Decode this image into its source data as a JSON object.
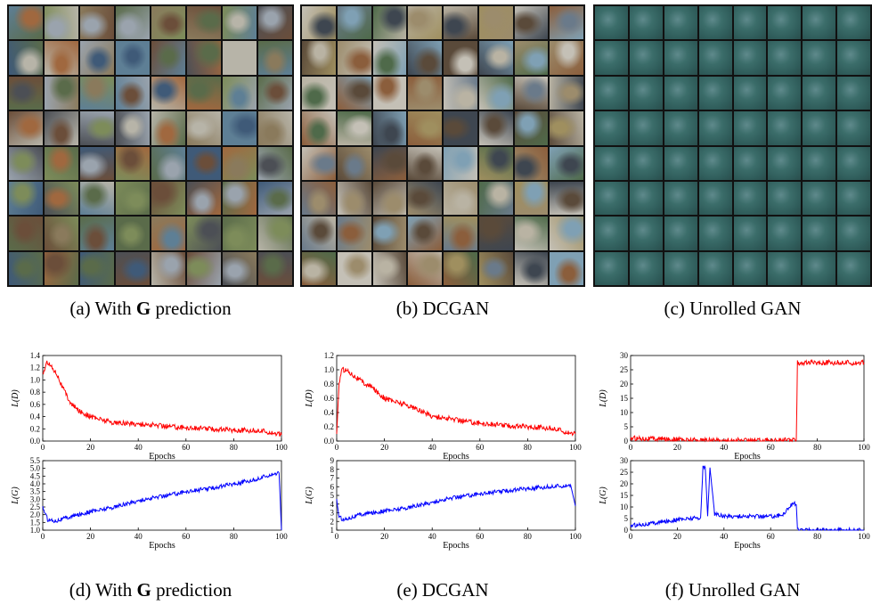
{
  "captions": {
    "a": {
      "prefix": "(a) With ",
      "bold": "G",
      "suffix": " prediction"
    },
    "b": "(b) DCGAN",
    "c": "(c) Unrolled GAN",
    "d": {
      "prefix": "(d) With ",
      "bold": "G",
      "suffix": " prediction"
    },
    "e": "(e) DCGAN",
    "f": "(f) Unrolled GAN"
  },
  "sample_grids": {
    "rows": 8,
    "cols": 8,
    "a": {
      "palette": [
        "#5a6b4a",
        "#8a7a5c",
        "#3f5a78",
        "#9aa3ad",
        "#6b4e3a",
        "#7d8c5a",
        "#b7b4a8",
        "#4c4f55",
        "#a0683f",
        "#5e7f95"
      ]
    },
    "b": {
      "palette": [
        "#6a7a8a",
        "#9c8c6c",
        "#4f6a4a",
        "#b9b3a3",
        "#5a4a3a",
        "#7fa0b4",
        "#8b5e3c",
        "#c4c0b6",
        "#3e4650",
        "#9f8f5f"
      ]
    },
    "c": {
      "palette": [
        "#2f5c5a",
        "#3b6d6a",
        "#4f7f74",
        "#5f8a8c",
        "#2a4d4c",
        "#6d8f84"
      ]
    }
  },
  "chart_data": [
    {
      "type": "line",
      "id": "d-top",
      "xlabel": "Epochs",
      "ylabel": "L(D)",
      "xlim": [
        0,
        100
      ],
      "ylim": [
        0,
        1.4
      ],
      "xticks": [
        "0",
        "20",
        "40",
        "60",
        "80",
        "100"
      ],
      "yticks": [
        "0.0",
        "0.2",
        "0.4",
        "0.6",
        "0.8",
        "1.0",
        "1.2",
        "1.4"
      ],
      "color": "#ff0000",
      "series": [
        {
          "x": [
            0,
            2,
            4,
            6,
            8,
            10,
            12,
            15,
            20,
            25,
            30,
            40,
            50,
            60,
            70,
            80,
            90,
            95,
            100
          ],
          "y": [
            1.1,
            1.3,
            1.2,
            1.1,
            0.9,
            0.75,
            0.6,
            0.5,
            0.4,
            0.35,
            0.3,
            0.28,
            0.25,
            0.22,
            0.2,
            0.18,
            0.17,
            0.15,
            0.1
          ]
        }
      ]
    },
    {
      "type": "line",
      "id": "d-bot",
      "xlabel": "Epochs",
      "ylabel": "L(G)",
      "xlim": [
        0,
        100
      ],
      "ylim": [
        1.0,
        5.5
      ],
      "xticks": [
        "0",
        "20",
        "40",
        "60",
        "80",
        "100"
      ],
      "yticks": [
        "1.0",
        "1.5",
        "2.0",
        "2.5",
        "3.0",
        "3.5",
        "4.0",
        "4.5",
        "5.0",
        "5.5"
      ],
      "color": "#0000ff",
      "series": [
        {
          "x": [
            0,
            2,
            5,
            10,
            20,
            30,
            40,
            50,
            60,
            70,
            80,
            90,
            95,
            99,
            100
          ],
          "y": [
            2.5,
            1.7,
            1.6,
            1.8,
            2.2,
            2.5,
            2.9,
            3.2,
            3.5,
            3.7,
            4.0,
            4.3,
            4.6,
            4.7,
            1.0
          ]
        }
      ]
    },
    {
      "type": "line",
      "id": "e-top",
      "xlabel": "Epochs",
      "ylabel": "L(D)",
      "xlim": [
        0,
        100
      ],
      "ylim": [
        0,
        1.2
      ],
      "xticks": [
        "0",
        "20",
        "40",
        "60",
        "80",
        "100"
      ],
      "yticks": [
        "0.0",
        "0.2",
        "0.4",
        "0.6",
        "0.8",
        "1.0",
        "1.2"
      ],
      "color": "#ff0000",
      "series": [
        {
          "x": [
            0,
            1,
            2,
            4,
            6,
            8,
            10,
            12,
            15,
            20,
            30,
            40,
            50,
            60,
            70,
            80,
            90,
            100
          ],
          "y": [
            0.1,
            0.8,
            1.0,
            1.0,
            0.95,
            0.9,
            0.85,
            0.8,
            0.75,
            0.6,
            0.5,
            0.35,
            0.3,
            0.25,
            0.22,
            0.2,
            0.18,
            0.1
          ]
        }
      ]
    },
    {
      "type": "line",
      "id": "e-bot",
      "xlabel": "Epochs",
      "ylabel": "L(G)",
      "xlim": [
        0,
        100
      ],
      "ylim": [
        1,
        9
      ],
      "xticks": [
        "0",
        "20",
        "40",
        "60",
        "80",
        "100"
      ],
      "yticks": [
        "1",
        "2",
        "3",
        "4",
        "5",
        "6",
        "7",
        "8",
        "9"
      ],
      "color": "#0000ff",
      "series": [
        {
          "x": [
            0,
            1,
            3,
            5,
            10,
            20,
            30,
            40,
            50,
            60,
            70,
            80,
            90,
            98,
            100
          ],
          "y": [
            4.5,
            2.5,
            2.2,
            2.4,
            2.8,
            3.2,
            3.6,
            4.2,
            4.8,
            5.2,
            5.5,
            5.8,
            6.0,
            6.2,
            3.8
          ]
        }
      ]
    },
    {
      "type": "line",
      "id": "f-top",
      "xlabel": "Epochs",
      "ylabel": "L(D)",
      "xlim": [
        0,
        100
      ],
      "ylim": [
        0,
        30
      ],
      "xticks": [
        "0",
        "20",
        "40",
        "60",
        "80",
        "100"
      ],
      "yticks": [
        "0",
        "5",
        "10",
        "15",
        "20",
        "25",
        "30"
      ],
      "color": "#ff0000",
      "series": [
        {
          "x": [
            0,
            5,
            10,
            20,
            30,
            40,
            50,
            60,
            70,
            71,
            71.5,
            80,
            90,
            100
          ],
          "y": [
            1.0,
            1.0,
            0.8,
            0.5,
            0.3,
            0.2,
            0.2,
            0.3,
            0.3,
            0.3,
            27.5,
            27.5,
            27.5,
            27.5
          ]
        }
      ]
    },
    {
      "type": "line",
      "id": "f-bot",
      "xlabel": "Epochs",
      "ylabel": "L(G)",
      "xlim": [
        0,
        100
      ],
      "ylim": [
        0,
        30
      ],
      "xticks": [
        "0",
        "20",
        "40",
        "60",
        "80",
        "100"
      ],
      "yticks": [
        "0",
        "5",
        "10",
        "15",
        "20",
        "25",
        "30"
      ],
      "color": "#0000ff",
      "series": [
        {
          "x": [
            0,
            5,
            10,
            20,
            25,
            30,
            31,
            32,
            33,
            34,
            36,
            40,
            50,
            60,
            65,
            68,
            70,
            71,
            71.5,
            80,
            90,
            100
          ],
          "y": [
            2,
            2.5,
            3,
            4.5,
            5,
            5.5,
            27,
            27,
            6,
            27,
            7,
            6,
            6,
            6,
            6.5,
            10,
            12,
            11,
            0,
            0,
            0,
            0
          ]
        }
      ]
    }
  ]
}
